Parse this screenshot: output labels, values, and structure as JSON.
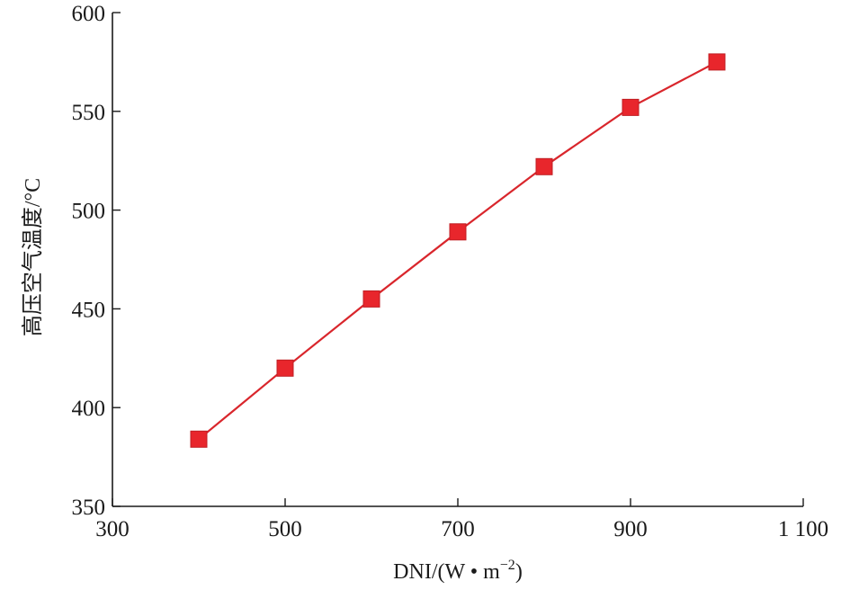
{
  "chart_data": {
    "type": "line",
    "title": "",
    "xlabel": "DNI/(W • m",
    "xlabel_sup": "−2",
    "xlabel_close": ")",
    "ylabel": "高压空气温度/°C",
    "xlim": [
      300,
      1100
    ],
    "ylim": [
      350,
      600
    ],
    "x_ticks": [
      300,
      500,
      700,
      900,
      1100
    ],
    "x_tick_labels": [
      "300",
      "500",
      "700",
      "900",
      "1 100"
    ],
    "y_ticks": [
      350,
      400,
      450,
      500,
      550,
      600
    ],
    "y_tick_labels": [
      "350",
      "400",
      "450",
      "500",
      "550",
      "600"
    ],
    "grid": false,
    "series": [
      {
        "x": [
          400,
          500,
          600,
          700,
          800,
          900,
          1000
        ],
        "values": [
          384,
          420,
          455,
          489,
          522,
          552,
          575
        ],
        "color": "#e8262c",
        "marker": "square"
      }
    ]
  }
}
